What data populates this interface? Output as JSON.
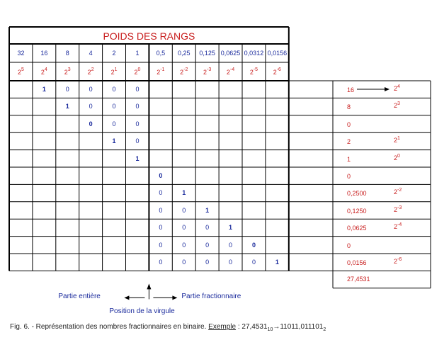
{
  "title": "POIDS DES RANGS",
  "weights": [
    "32",
    "16",
    "8",
    "4",
    "2",
    "1",
    "0,5",
    "0,25",
    "0,125",
    "0,0625",
    "0,0312",
    "0,0156"
  ],
  "powers": [
    {
      "base": "2",
      "exp": "5"
    },
    {
      "base": "2",
      "exp": "4"
    },
    {
      "base": "2",
      "exp": "3"
    },
    {
      "base": "2",
      "exp": "2"
    },
    {
      "base": "2",
      "exp": "1"
    },
    {
      "base": "2",
      "exp": "0"
    },
    {
      "base": "2",
      "exp": "-1"
    },
    {
      "base": "2",
      "exp": "-2"
    },
    {
      "base": "2",
      "exp": "-3"
    },
    {
      "base": "2",
      "exp": "-4"
    },
    {
      "base": "2",
      "exp": "-5"
    },
    {
      "base": "2",
      "exp": "-6"
    }
  ],
  "rows": [
    {
      "cells": [
        "",
        "1",
        "0",
        "0",
        "0",
        "0",
        "",
        "",
        "",
        "",
        "",
        ""
      ],
      "bold": [
        1
      ],
      "side_value": "16",
      "side_arrow": true,
      "side_power": {
        "base": "2",
        "exp": "4"
      }
    },
    {
      "cells": [
        "",
        "",
        "1",
        "0",
        "0",
        "0",
        "",
        "",
        "",
        "",
        "",
        ""
      ],
      "bold": [
        2
      ],
      "side_value": "8",
      "side_arrow": false,
      "side_power": {
        "base": "2",
        "exp": "3"
      }
    },
    {
      "cells": [
        "",
        "",
        "",
        "0",
        "0",
        "0",
        "",
        "",
        "",
        "",
        "",
        ""
      ],
      "bold": [
        3
      ],
      "side_value": "0",
      "side_arrow": false,
      "side_power": null
    },
    {
      "cells": [
        "",
        "",
        "",
        "",
        "1",
        "0",
        "",
        "",
        "",
        "",
        "",
        ""
      ],
      "bold": [
        4
      ],
      "side_value": "2",
      "side_arrow": false,
      "side_power": {
        "base": "2",
        "exp": "1"
      }
    },
    {
      "cells": [
        "",
        "",
        "",
        "",
        "",
        "1",
        "",
        "",
        "",
        "",
        "",
        ""
      ],
      "bold": [
        5
      ],
      "side_value": "1",
      "side_arrow": false,
      "side_power": {
        "base": "2",
        "exp": "0"
      }
    },
    {
      "cells": [
        "",
        "",
        "",
        "",
        "",
        "",
        "0",
        "",
        "",
        "",
        "",
        ""
      ],
      "bold": [
        6
      ],
      "side_value": "0",
      "side_arrow": false,
      "side_power": null
    },
    {
      "cells": [
        "",
        "",
        "",
        "",
        "",
        "",
        "0",
        "1",
        "",
        "",
        "",
        ""
      ],
      "bold": [
        7
      ],
      "side_value": "0,2500",
      "side_arrow": false,
      "side_power": {
        "base": "2",
        "exp": "-2"
      }
    },
    {
      "cells": [
        "",
        "",
        "",
        "",
        "",
        "",
        "0",
        "0",
        "1",
        "",
        "",
        ""
      ],
      "bold": [
        8
      ],
      "side_value": "0,1250",
      "side_arrow": false,
      "side_power": {
        "base": "2",
        "exp": "-3"
      }
    },
    {
      "cells": [
        "",
        "",
        "",
        "",
        "",
        "",
        "0",
        "0",
        "0",
        "1",
        "",
        ""
      ],
      "bold": [
        9
      ],
      "side_value": "0,0625",
      "side_arrow": false,
      "side_power": {
        "base": "2",
        "exp": "-4"
      }
    },
    {
      "cells": [
        "",
        "",
        "",
        "",
        "",
        "",
        "0",
        "0",
        "0",
        "0",
        "0",
        ""
      ],
      "bold": [
        10
      ],
      "side_value": "0",
      "side_arrow": false,
      "side_power": null
    },
    {
      "cells": [
        "",
        "",
        "",
        "",
        "",
        "",
        "0",
        "0",
        "0",
        "0",
        "0",
        "1"
      ],
      "bold": [
        11
      ],
      "side_value": "0,0156",
      "side_arrow": false,
      "side_power": {
        "base": "2",
        "exp": "-6"
      }
    }
  ],
  "total": "27,4531",
  "label_integer": "Partie entière",
  "label_fraction": "Partie fractionnaire",
  "label_point": "Position de la virgule",
  "caption": {
    "prefix": "Fig. 6. - Représentation des nombres fractionnaires en binaire.",
    "example_word": "Exemple",
    "colon": " : ",
    "number": "27,4531",
    "base_sub": "10",
    "arrow": "→",
    "result": "11011,011101",
    "result_sub": "2"
  },
  "colors": {
    "red": "#c81e1e",
    "blue": "#1a2a9c"
  }
}
